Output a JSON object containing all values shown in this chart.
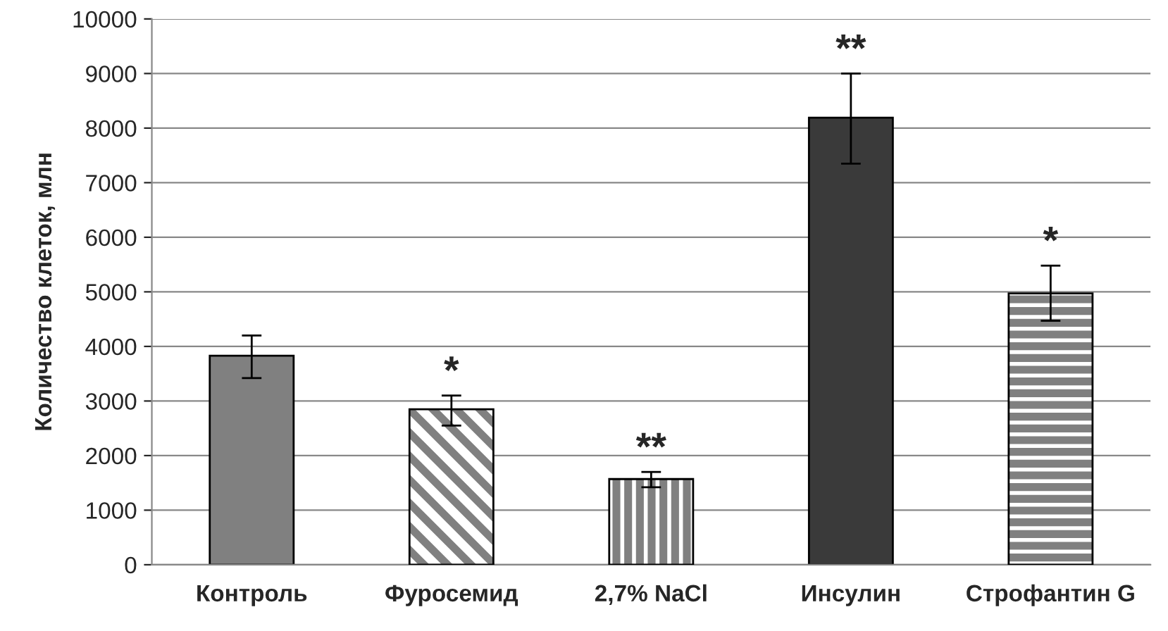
{
  "chart_data": {
    "type": "bar",
    "ylabel": "Количество клеток, млн",
    "categories": [
      "Контроль",
      "Фуросемид",
      "2,7% NaCl",
      "Инсулин",
      "Строфантин G"
    ],
    "values": [
      3830,
      2850,
      1570,
      8190,
      4970
    ],
    "errors": [
      [
        3420,
        4200
      ],
      [
        2550,
        3100
      ],
      [
        1420,
        1700
      ],
      [
        7350,
        9000
      ],
      [
        4470,
        5480
      ]
    ],
    "colors": [
      "#808080",
      "#808080",
      "#808080",
      "#3a3a3a",
      "#808080"
    ],
    "ylim": [
      0,
      10000
    ],
    "yticks": [
      0,
      1000,
      2000,
      3000,
      4000,
      5000,
      6000,
      7000,
      8000,
      9000,
      10000
    ],
    "grid": "y",
    "annotations": [
      {
        "text": "*",
        "x": "Фуросемид",
        "y": 3100
      },
      {
        "text": "**",
        "x": "2,7% NaCl",
        "y": 1700
      },
      {
        "text": "**",
        "x": "Инсулин",
        "y": 9000
      },
      {
        "text": "*",
        "x": "Строфантин G",
        "y": 5480
      }
    ]
  }
}
